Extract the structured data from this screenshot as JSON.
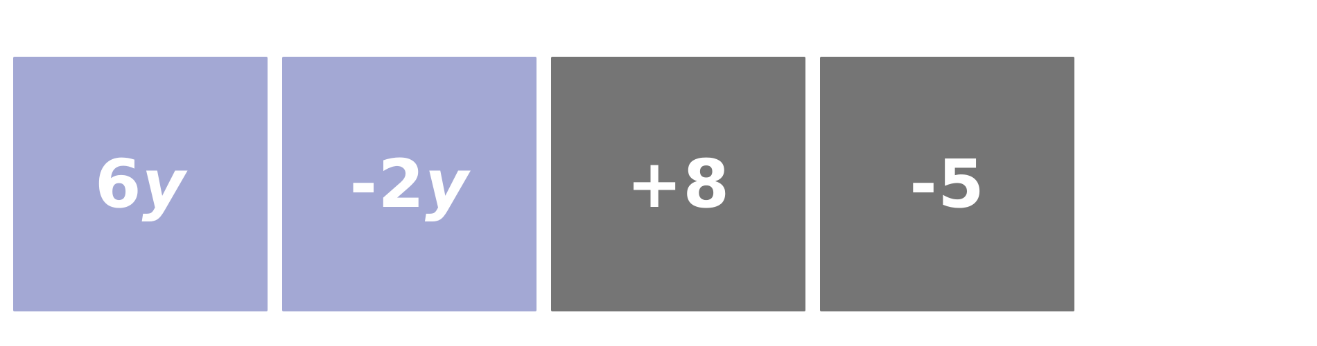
{
  "tiles": [
    {
      "label": "6y",
      "coefficient": "6",
      "variable": "y",
      "kind": "variable",
      "color": "#a3a8d4"
    },
    {
      "label": "-2y",
      "coefficient": "-2",
      "variable": "y",
      "kind": "variable",
      "color": "#a3a8d4"
    },
    {
      "label": "+8",
      "coefficient": "+8",
      "variable": "",
      "kind": "constant",
      "color": "#757575"
    },
    {
      "label": "-5",
      "coefficient": "-5",
      "variable": "",
      "kind": "constant",
      "color": "#757575"
    }
  ]
}
